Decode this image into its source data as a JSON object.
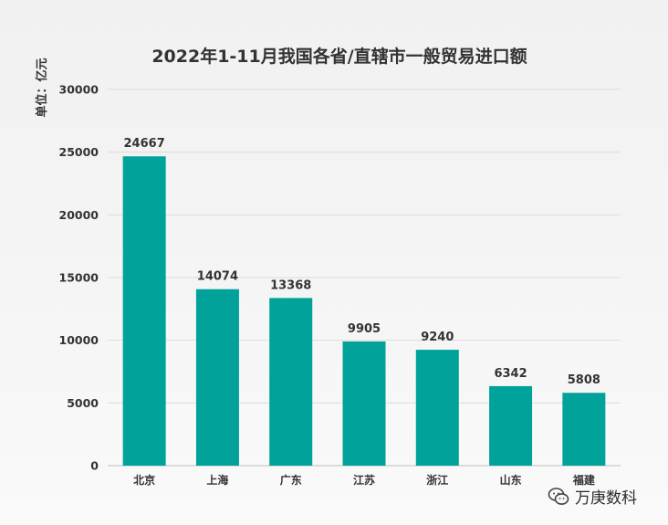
{
  "chart_data": {
    "type": "bar",
    "title": "2022年1-11月我国各省/直辖市一般贸易进口额",
    "unit_label": "单位：亿元",
    "categories": [
      "北京",
      "上海",
      "广东",
      "江苏",
      "浙江",
      "山东",
      "福建"
    ],
    "values": [
      24667,
      14074,
      13368,
      9905,
      9240,
      6342,
      5808
    ],
    "ylim": [
      0,
      30000
    ],
    "yticks": [
      0,
      5000,
      10000,
      15000,
      20000,
      25000,
      30000
    ],
    "grid": true,
    "bar_color": "#00A29A"
  },
  "watermark": {
    "text": "万庚数科",
    "icon": "wechat-icon"
  }
}
